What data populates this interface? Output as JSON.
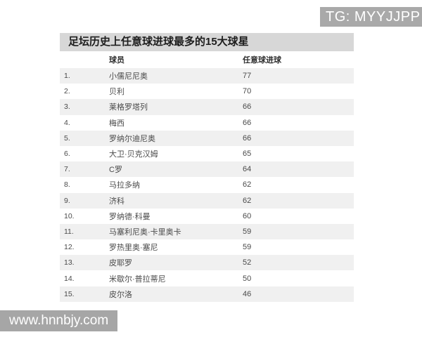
{
  "watermarks": {
    "top_right": "TG: MYYJJPP",
    "bottom_left": "www.hnnbjy.com"
  },
  "colors": {
    "title_bar_bg": "#d7d7d7",
    "row_stripe_bg": "#f0f0f0",
    "watermark_bg": "#a9a9a9",
    "watermark_text": "#ffffff",
    "body_text": "#4a4a4a"
  },
  "chart_data": {
    "type": "table",
    "title": "足坛历史上任意球进球最多的15大球星",
    "columns": [
      "球员",
      "任意球进球"
    ],
    "player_header": "球员",
    "goals_header": "任意球进球",
    "rows": [
      {
        "rank": "1.",
        "player": "小儒尼尼奥",
        "goals": 77
      },
      {
        "rank": "2.",
        "player": "贝利",
        "goals": 70
      },
      {
        "rank": "3.",
        "player": "莱格罗塔列",
        "goals": 66
      },
      {
        "rank": "4.",
        "player": "梅西",
        "goals": 66
      },
      {
        "rank": "5.",
        "player": "罗纳尔迪尼奥",
        "goals": 66
      },
      {
        "rank": "6.",
        "player": "大卫·贝克汉姆",
        "goals": 65
      },
      {
        "rank": "7.",
        "player": "C罗",
        "goals": 64
      },
      {
        "rank": "8.",
        "player": "马拉多纳",
        "goals": 62
      },
      {
        "rank": "9.",
        "player": "济科",
        "goals": 62
      },
      {
        "rank": "10.",
        "player": "罗纳德·科曼",
        "goals": 60
      },
      {
        "rank": "11.",
        "player": "马塞利尼奥·卡里奥卡",
        "goals": 59
      },
      {
        "rank": "12.",
        "player": "罗热里奥·塞尼",
        "goals": 59
      },
      {
        "rank": "13.",
        "player": "皮耶罗",
        "goals": 52
      },
      {
        "rank": "14.",
        "player": "米歇尔·普拉蒂尼",
        "goals": 50
      },
      {
        "rank": "15.",
        "player": "皮尔洛",
        "goals": 46
      }
    ]
  }
}
